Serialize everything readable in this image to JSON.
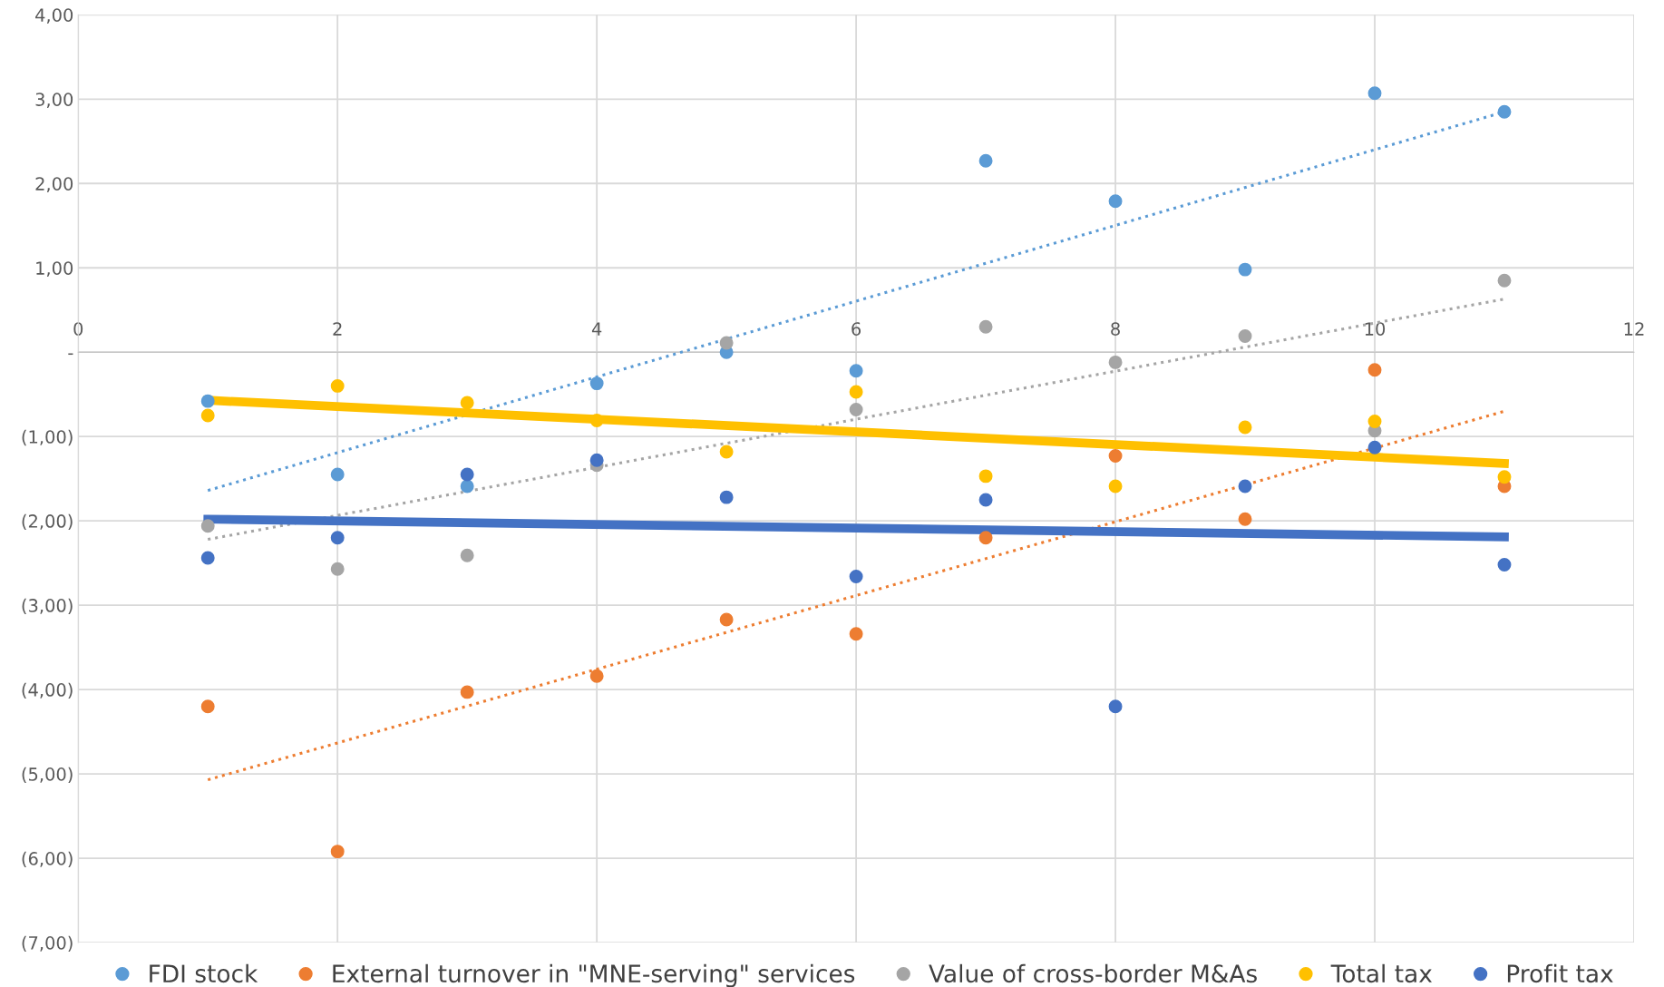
{
  "chart_data": {
    "type": "scatter",
    "xlim": [
      0,
      12
    ],
    "xticks": [
      0,
      2,
      4,
      6,
      8,
      10,
      12
    ],
    "ylim": [
      -7,
      4
    ],
    "yticks": [
      {
        "value": -7,
        "label": "(7,00)"
      },
      {
        "value": -6,
        "label": "(6,00)"
      },
      {
        "value": -5,
        "label": "(5,00)"
      },
      {
        "value": -4,
        "label": "(4,00)"
      },
      {
        "value": -3,
        "label": "(3,00)"
      },
      {
        "value": -2,
        "label": "(2,00)"
      },
      {
        "value": -1,
        "label": "(1,00)"
      },
      {
        "value": 0,
        "label": "-"
      },
      {
        "value": 1,
        "label": "1,00"
      },
      {
        "value": 2,
        "label": "2,00"
      },
      {
        "value": 3,
        "label": "3,00"
      },
      {
        "value": 4,
        "label": "4,00"
      }
    ],
    "grid": true,
    "legend": "bottom",
    "marker": "circle",
    "series": [
      {
        "name": "FDI stock",
        "color": "#5b9bd5",
        "x": [
          1,
          2,
          3,
          4,
          5,
          6,
          7,
          8,
          9,
          10,
          11
        ],
        "values": [
          -0.58,
          -1.45,
          -1.59,
          -0.37,
          0.0,
          -0.22,
          2.27,
          1.79,
          0.98,
          3.07,
          2.85
        ]
      },
      {
        "name": "External turnover in \"MNE-serving\" services",
        "color": "#ed7d31",
        "x": [
          1,
          2,
          3,
          4,
          5,
          6,
          7,
          8,
          9,
          10,
          11
        ],
        "values": [
          -4.2,
          -5.92,
          -4.03,
          -3.84,
          -3.17,
          -3.34,
          -2.2,
          -1.23,
          -1.98,
          -0.21,
          -1.59
        ]
      },
      {
        "name": "Value of cross-border M&As",
        "color": "#a5a5a5",
        "x": [
          1,
          2,
          3,
          4,
          5,
          6,
          7,
          8,
          9,
          10,
          11
        ],
        "values": [
          -2.06,
          -2.57,
          -2.41,
          -1.34,
          0.11,
          -0.68,
          0.3,
          -0.12,
          0.19,
          -0.93,
          0.85
        ]
      },
      {
        "name": "Total tax",
        "color": "#ffc000",
        "x": [
          1,
          2,
          3,
          4,
          5,
          6,
          7,
          8,
          9,
          10,
          11
        ],
        "values": [
          -0.75,
          -0.4,
          -0.6,
          -0.81,
          -1.18,
          -0.47,
          -1.47,
          -1.59,
          -0.89,
          -0.82,
          -1.48
        ]
      },
      {
        "name": "Profit tax",
        "color": "#4472c4",
        "x": [
          1,
          2,
          3,
          4,
          5,
          6,
          7,
          8,
          9,
          10,
          11
        ],
        "values": [
          -2.44,
          -2.2,
          -1.45,
          -1.28,
          -1.72,
          -2.66,
          -1.75,
          -4.2,
          -1.59,
          -1.13,
          -2.52
        ]
      },
      {
        "type": "line",
        "marker": "none",
        "x": [
          1,
          11
        ],
        "color": "#5b9bd5",
        "line_style": "dotted",
        "values": [
          -1.64,
          2.85
        ]
      },
      {
        "type": "line",
        "marker": "none",
        "x": [
          1,
          11
        ],
        "color": "#ed7d31",
        "line_style": "dotted",
        "values": [
          -5.07,
          -0.7
        ]
      },
      {
        "type": "line",
        "marker": "none",
        "x": [
          1,
          11
        ],
        "color": "#a5a5a5",
        "line_style": "dotted",
        "values": [
          -2.22,
          0.63
        ]
      },
      {
        "type": "line",
        "marker": "none",
        "x": [
          1,
          11
        ],
        "color": "#ffc000",
        "line_style": "solid",
        "values": [
          -0.57,
          -1.32
        ]
      },
      {
        "type": "line",
        "marker": "none",
        "x": [
          1,
          11
        ],
        "color": "#4472c4",
        "line_style": "solid",
        "values": [
          -1.98,
          -2.19
        ]
      }
    ]
  }
}
